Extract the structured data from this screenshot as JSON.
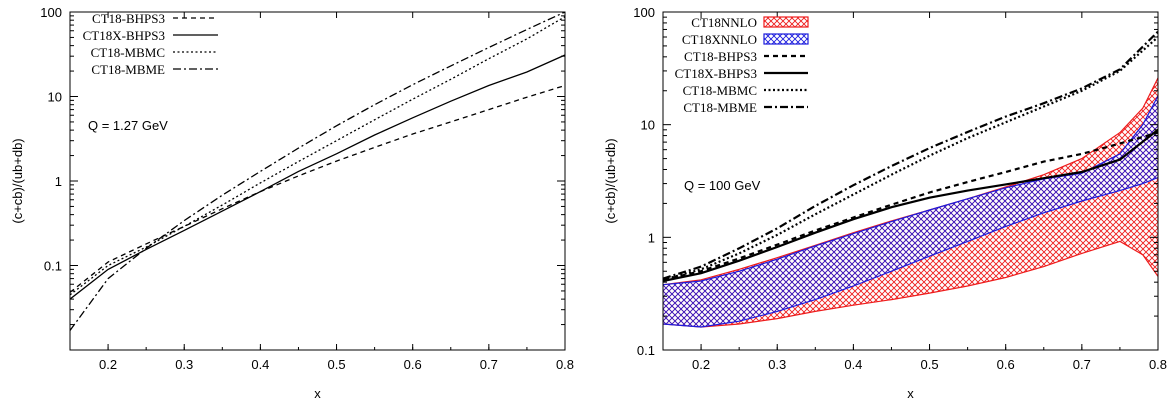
{
  "chart_data": [
    {
      "type": "line",
      "xlabel": "x",
      "ylabel": "(c+cb)/(ub+db)",
      "xlim": [
        0.15,
        0.8
      ],
      "ylim": [
        0.01,
        100
      ],
      "yscale": "log",
      "x_ticks": [
        "0.2",
        "0.3",
        "0.4",
        "0.5",
        "0.6",
        "0.7",
        "0.8"
      ],
      "y_ticks": [
        "0.1",
        "1",
        "10",
        "100"
      ],
      "annotation": "Q = 1.27 GeV",
      "legend_position": "top-left",
      "grid": false,
      "series": [
        {
          "name": "CT18-BHPS3",
          "dash": "dashed",
          "x": [
            0.15,
            0.2,
            0.25,
            0.3,
            0.35,
            0.4,
            0.45,
            0.5,
            0.55,
            0.6,
            0.65,
            0.7,
            0.75,
            0.8
          ],
          "y": [
            0.048,
            0.11,
            0.18,
            0.29,
            0.47,
            0.75,
            1.15,
            1.72,
            2.5,
            3.6,
            5.0,
            7.0,
            9.8,
            13.5
          ]
        },
        {
          "name": "CT18X-BHPS3",
          "dash": "solid",
          "x": [
            0.15,
            0.2,
            0.25,
            0.3,
            0.35,
            0.4,
            0.45,
            0.5,
            0.55,
            0.6,
            0.65,
            0.7,
            0.75,
            0.8
          ],
          "y": [
            0.04,
            0.09,
            0.155,
            0.26,
            0.44,
            0.75,
            1.3,
            2.1,
            3.5,
            5.6,
            8.8,
            13.5,
            19.5,
            31.0
          ]
        },
        {
          "name": "CT18-MBMC",
          "dash": "dotted",
          "x": [
            0.15,
            0.2,
            0.25,
            0.3,
            0.35,
            0.4,
            0.45,
            0.5,
            0.55,
            0.6,
            0.65,
            0.7,
            0.75,
            0.8
          ],
          "y": [
            0.045,
            0.1,
            0.165,
            0.29,
            0.52,
            0.95,
            1.7,
            3.0,
            5.3,
            9.3,
            16.0,
            28.0,
            48.0,
            88.0
          ]
        },
        {
          "name": "CT18-MBME",
          "dash": "dash-dot",
          "x": [
            0.15,
            0.2,
            0.25,
            0.3,
            0.35,
            0.4,
            0.45,
            0.5,
            0.55,
            0.6,
            0.65,
            0.7,
            0.75,
            0.8
          ],
          "y": [
            0.017,
            0.07,
            0.16,
            0.34,
            0.68,
            1.3,
            2.45,
            4.5,
            8.0,
            13.8,
            23.0,
            38.0,
            62.0,
            100.0
          ]
        }
      ]
    },
    {
      "type": "line",
      "xlabel": "x",
      "ylabel": "(c+cb)/(ub+db)",
      "xlim": [
        0.15,
        0.8
      ],
      "ylim": [
        0.1,
        100
      ],
      "yscale": "log",
      "x_ticks": [
        "0.2",
        "0.3",
        "0.4",
        "0.5",
        "0.6",
        "0.7",
        "0.8"
      ],
      "y_ticks": [
        "0.1",
        "1",
        "10",
        "100"
      ],
      "annotation": "Q = 100 GeV",
      "legend_position": "top-left",
      "grid": false,
      "bands": [
        {
          "name": "CT18NNLO",
          "color": "#ee1c1c",
          "x": [
            0.15,
            0.2,
            0.25,
            0.3,
            0.35,
            0.4,
            0.45,
            0.5,
            0.55,
            0.6,
            0.65,
            0.7,
            0.75,
            0.78,
            0.8
          ],
          "upper": [
            0.38,
            0.42,
            0.52,
            0.66,
            0.85,
            1.1,
            1.4,
            1.75,
            2.2,
            2.8,
            3.6,
            5.0,
            8.5,
            14.0,
            26.0
          ],
          "lower": [
            0.17,
            0.16,
            0.17,
            0.19,
            0.22,
            0.25,
            0.28,
            0.32,
            0.37,
            0.44,
            0.55,
            0.72,
            0.92,
            0.7,
            0.45
          ]
        },
        {
          "name": "CT18XNNLO",
          "color": "#1c1cdd",
          "x": [
            0.15,
            0.2,
            0.25,
            0.3,
            0.35,
            0.4,
            0.45,
            0.5,
            0.55,
            0.6,
            0.65,
            0.7,
            0.75,
            0.78,
            0.8
          ],
          "upper": [
            0.38,
            0.41,
            0.5,
            0.64,
            0.84,
            1.08,
            1.38,
            1.75,
            2.2,
            2.75,
            3.3,
            3.7,
            5.5,
            10.0,
            18.0
          ],
          "lower": [
            0.17,
            0.16,
            0.18,
            0.22,
            0.28,
            0.37,
            0.5,
            0.68,
            0.92,
            1.25,
            1.65,
            2.1,
            2.6,
            3.0,
            3.4
          ]
        }
      ],
      "series": [
        {
          "name": "CT18-BHPS3",
          "dash": "dashed",
          "x": [
            0.15,
            0.2,
            0.25,
            0.3,
            0.35,
            0.4,
            0.45,
            0.5,
            0.55,
            0.6,
            0.65,
            0.7,
            0.75,
            0.8
          ],
          "y": [
            0.42,
            0.5,
            0.65,
            0.86,
            1.15,
            1.5,
            1.95,
            2.5,
            3.1,
            3.8,
            4.7,
            5.5,
            6.8,
            8.5
          ]
        },
        {
          "name": "CT18X-BHPS3",
          "dash": "solid",
          "x": [
            0.15,
            0.2,
            0.25,
            0.3,
            0.35,
            0.4,
            0.45,
            0.5,
            0.55,
            0.6,
            0.65,
            0.7,
            0.75,
            0.8
          ],
          "y": [
            0.41,
            0.48,
            0.62,
            0.82,
            1.1,
            1.45,
            1.85,
            2.25,
            2.6,
            2.95,
            3.35,
            3.8,
            4.9,
            9.0
          ]
        },
        {
          "name": "CT18-MBMC",
          "dash": "dotted",
          "x": [
            0.15,
            0.2,
            0.25,
            0.3,
            0.35,
            0.4,
            0.45,
            0.5,
            0.55,
            0.6,
            0.65,
            0.7,
            0.75,
            0.8
          ],
          "y": [
            0.42,
            0.52,
            0.72,
            1.05,
            1.6,
            2.4,
            3.6,
            5.3,
            7.6,
            10.5,
            14.5,
            20.0,
            30.0,
            60.0
          ]
        },
        {
          "name": "CT18-MBME",
          "dash": "dash-dot",
          "x": [
            0.15,
            0.2,
            0.25,
            0.3,
            0.35,
            0.4,
            0.45,
            0.5,
            0.55,
            0.6,
            0.65,
            0.7,
            0.75,
            0.8
          ],
          "y": [
            0.43,
            0.55,
            0.8,
            1.2,
            1.9,
            2.9,
            4.3,
            6.2,
            8.6,
            11.8,
            15.5,
            21.0,
            31.0,
            67.0
          ]
        }
      ]
    }
  ]
}
